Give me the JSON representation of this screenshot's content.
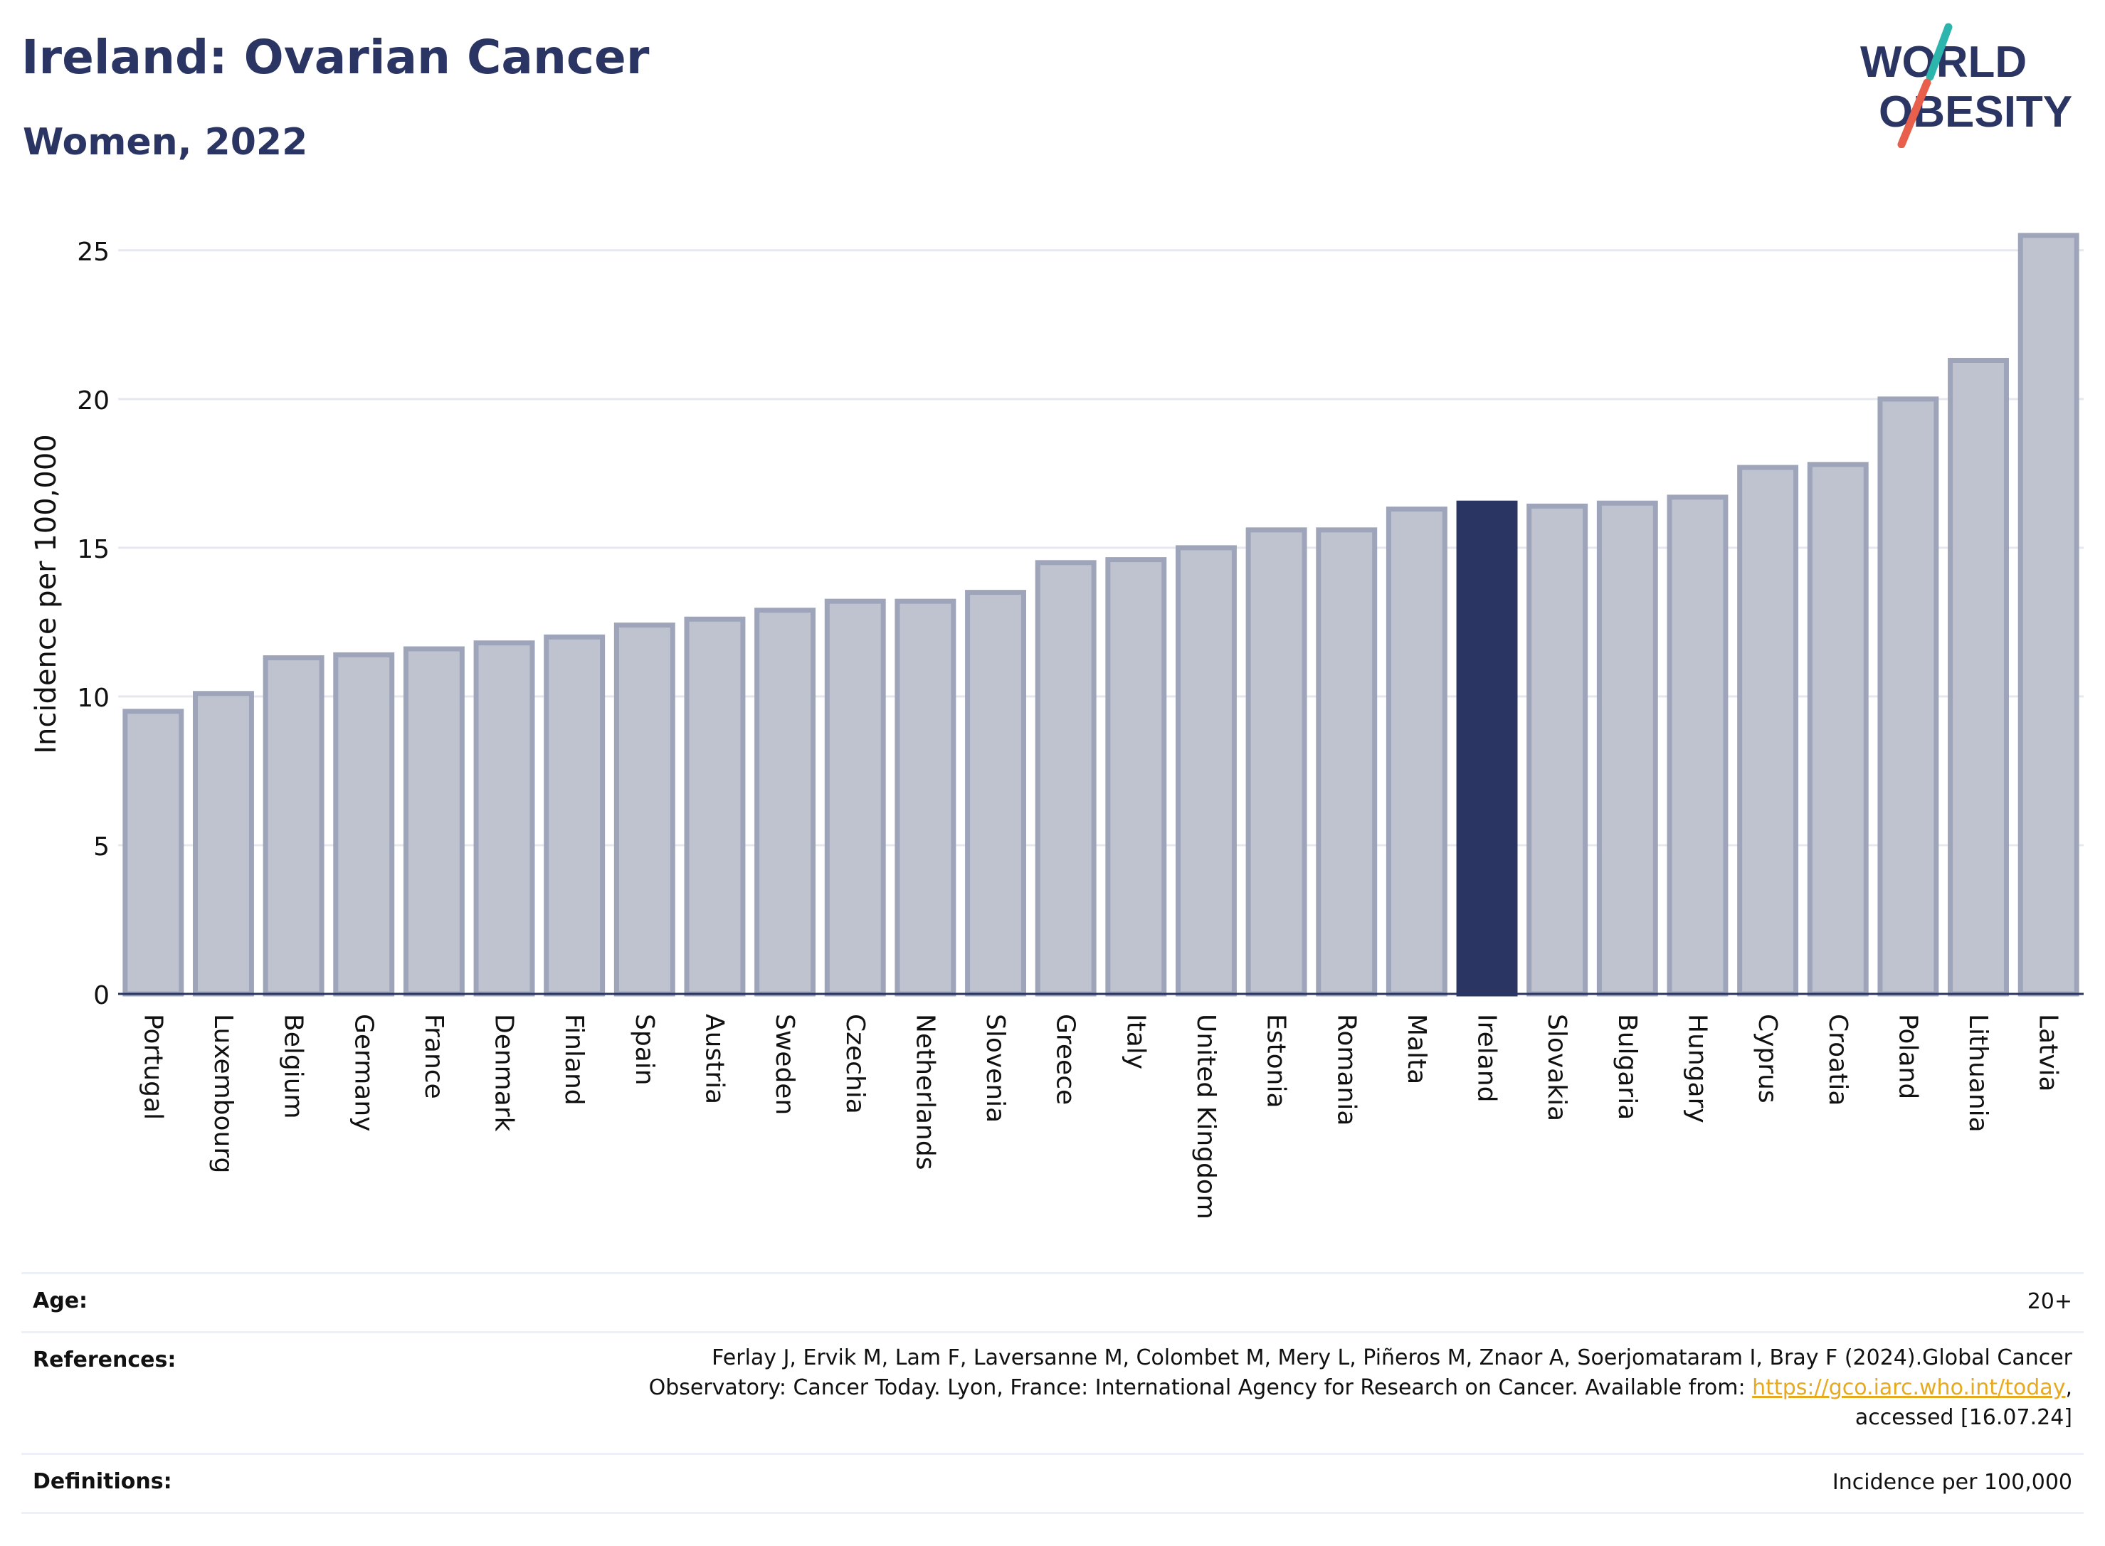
{
  "header": {
    "title": "Ireland: Ovarian Cancer",
    "subtitle": "Women, 2022"
  },
  "logo": {
    "line1": "WORLD",
    "line2": "OBESITY",
    "colors": {
      "text": "#2b3563",
      "slash_top": "#2bb5ad",
      "slash_bottom": "#e8604c"
    }
  },
  "colors": {
    "bar": "#bfc3d0",
    "bar_edge": "#9ea4ba",
    "highlight": "#2b3563",
    "grid": "#e6e8ef",
    "axis": "#2b3563"
  },
  "chart_data": {
    "type": "bar",
    "ylabel": "Incidence per 100,000",
    "ylim": [
      0,
      26
    ],
    "yticks": [
      0,
      5,
      10,
      15,
      20,
      25
    ],
    "grid": true,
    "highlight": "Ireland",
    "categories": [
      "Portugal",
      "Luxembourg",
      "Belgium",
      "Germany",
      "France",
      "Denmark",
      "Finland",
      "Spain",
      "Austria",
      "Sweden",
      "Czechia",
      "Netherlands",
      "Slovenia",
      "Greece",
      "Italy",
      "United Kingdom",
      "Estonia",
      "Romania",
      "Malta",
      "Ireland",
      "Slovakia",
      "Bulgaria",
      "Hungary",
      "Cyprus",
      "Croatia",
      "Poland",
      "Lithuania",
      "Latvia"
    ],
    "values": [
      9.5,
      10.1,
      11.3,
      11.4,
      11.6,
      11.8,
      12.0,
      12.4,
      12.6,
      12.9,
      13.2,
      13.2,
      13.5,
      14.5,
      14.6,
      15.0,
      15.6,
      15.6,
      16.3,
      16.5,
      16.4,
      16.5,
      16.7,
      17.7,
      17.8,
      20.0,
      21.3,
      25.5
    ]
  },
  "info": {
    "age_label": "Age:",
    "age_value": "20+",
    "references_label": "References:",
    "references_line1": "Ferlay J, Ervik M, Lam F, Laversanne M, Colombet M, Mery L, Piñeros M, Znaor A, Soerjomataram I, Bray F (2024).Global Cancer",
    "references_line2_prefix": "Observatory: Cancer Today. Lyon, France: International Agency for Research on Cancer. Available from: ",
    "references_link": "https://gco.iarc.who.int/today",
    "references_line2_suffix": ",",
    "references_line3": "accessed [16.07.24]",
    "definitions_label": "Definitions:",
    "definitions_value": "Incidence per 100,000"
  }
}
